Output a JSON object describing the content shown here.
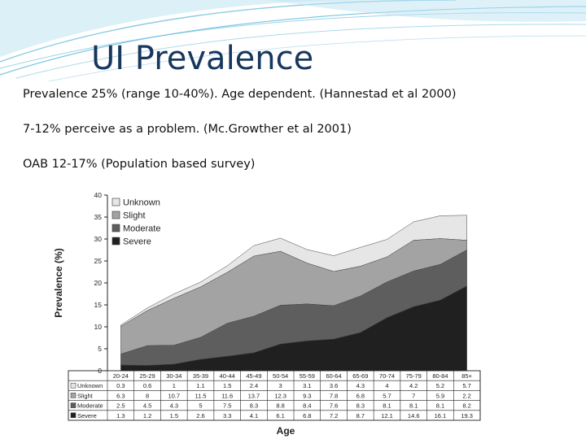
{
  "slide": {
    "title": "UI  Prevalence",
    "bullets": [
      "Prevalence 25% (range 10-40%). Age dependent. (Hannestad et al 2000)",
      "7-12% perceive as a problem. (Mc.Growther et al 2001)",
      "OAB 12-17% (Population based survey)"
    ]
  },
  "colors": {
    "title": "#17375e",
    "swoosh": "#5ab6d8",
    "unknown": "#e6e6e6",
    "slight": "#a3a3a3",
    "moderate": "#5e5e5e",
    "severe": "#202020"
  },
  "chart_data": {
    "type": "area",
    "stacked": true,
    "title": "",
    "xlabel": "Age",
    "ylabel": "Prevalence (%)",
    "ylim": [
      0,
      40
    ],
    "yticks": [
      0,
      5,
      10,
      15,
      20,
      25,
      30,
      35,
      40
    ],
    "grid": false,
    "legend_position": "top-left",
    "categories": [
      "20-24",
      "25-29",
      "30-34",
      "35-39",
      "40-44",
      "45-49",
      "50-54",
      "55-59",
      "60-64",
      "65-69",
      "70-74",
      "75-79",
      "80-84",
      "85+"
    ],
    "series": [
      {
        "name": "Severe",
        "color": "#202020",
        "values": [
          1.3,
          1.2,
          1.5,
          2.6,
          3.3,
          4.1,
          6.1,
          6.8,
          7.2,
          8.7,
          12.1,
          14.6,
          16.1,
          19.3
        ]
      },
      {
        "name": "Moderate",
        "color": "#5e5e5e",
        "values": [
          2.5,
          4.5,
          4.3,
          5,
          7.5,
          8.3,
          8.8,
          8.4,
          7.6,
          8.3,
          8.1,
          8.1,
          8.1,
          8.2
        ]
      },
      {
        "name": "Slight",
        "color": "#a3a3a3",
        "values": [
          6.3,
          8,
          10.7,
          11.5,
          11.6,
          13.7,
          12.3,
          9.3,
          7.8,
          6.8,
          5.7,
          7,
          5.9,
          2.2
        ]
      },
      {
        "name": "Unknown",
        "color": "#e6e6e6",
        "values": [
          0.3,
          0.6,
          1,
          1.1,
          1.5,
          2.4,
          3,
          3.1,
          3.6,
          4.3,
          4,
          4.2,
          5.2,
          5.7
        ]
      }
    ],
    "table_rows_order": [
      "Unknown",
      "Slight",
      "Moderate",
      "Severe"
    ]
  }
}
